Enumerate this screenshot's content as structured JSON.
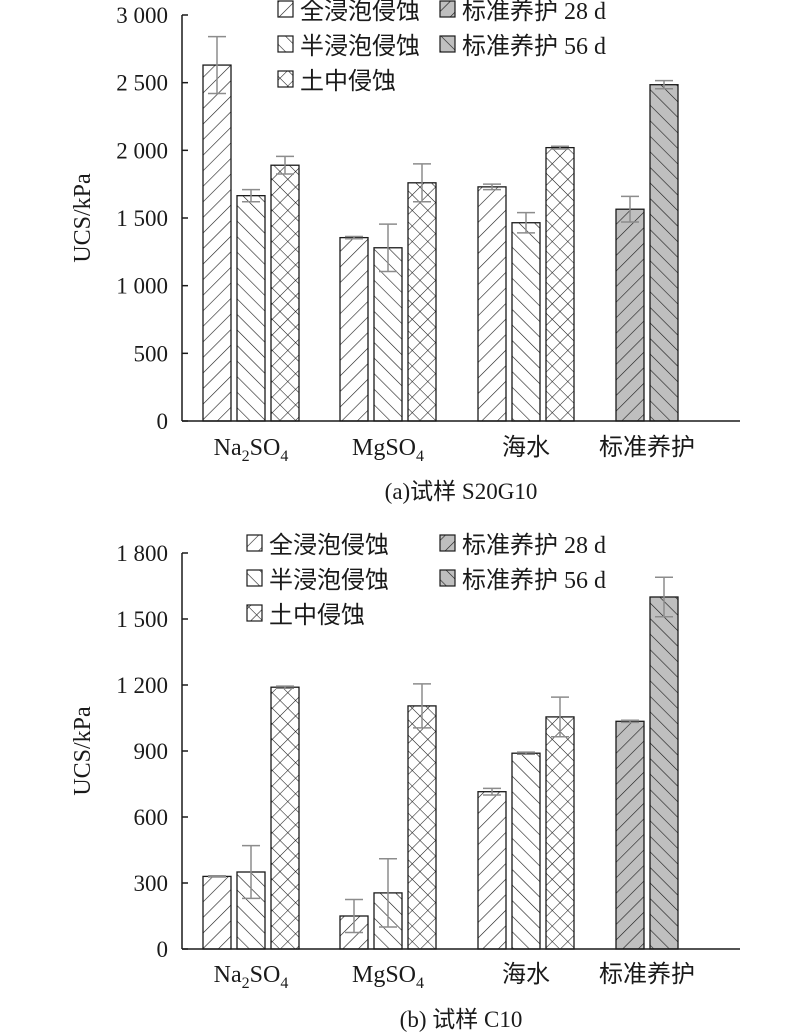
{
  "chart_data": [
    {
      "type": "bar",
      "caption": "(a)试样 S20G10",
      "ylabel": "UCS/kPa",
      "ylim": [
        0,
        3000
      ],
      "yticks": [
        0,
        500,
        1000,
        1500,
        2000,
        2500,
        3000
      ],
      "ytick_labels": [
        "0",
        "500",
        "1 000",
        "1 500",
        "2 000",
        "2 500",
        "3 000"
      ],
      "categories": [
        {
          "main": "Na",
          "sub1": "2",
          "mid": "SO",
          "sub2": "4"
        },
        {
          "main": "MgSO",
          "sub1": "4",
          "mid": "",
          "sub2": ""
        },
        {
          "main": "海水",
          "sub1": "",
          "mid": "",
          "sub2": ""
        },
        {
          "main": "标准养护",
          "sub1": "",
          "mid": "",
          "sub2": ""
        }
      ],
      "bars": [
        {
          "category": 0,
          "series": "全浸泡侵蚀",
          "value": 2630,
          "error": 210
        },
        {
          "category": 0,
          "series": "半浸泡侵蚀",
          "value": 1665,
          "error": 45
        },
        {
          "category": 0,
          "series": "土中侵蚀",
          "value": 1890,
          "error": 65
        },
        {
          "category": 1,
          "series": "全浸泡侵蚀",
          "value": 1355,
          "error": 8
        },
        {
          "category": 1,
          "series": "半浸泡侵蚀",
          "value": 1280,
          "error": 175
        },
        {
          "category": 1,
          "series": "土中侵蚀",
          "value": 1760,
          "error": 140
        },
        {
          "category": 2,
          "series": "全浸泡侵蚀",
          "value": 1730,
          "error": 20
        },
        {
          "category": 2,
          "series": "半浸泡侵蚀",
          "value": 1465,
          "error": 75
        },
        {
          "category": 2,
          "series": "土中侵蚀",
          "value": 2020,
          "error": 10
        },
        {
          "category": 3,
          "series": "标准养护 28 d",
          "value": 1565,
          "error": 95
        },
        {
          "category": 3,
          "series": "标准养护 56 d",
          "value": 2485,
          "error": 30
        }
      ]
    },
    {
      "type": "bar",
      "caption": "(b) 试样 C10",
      "ylabel": "UCS/kPa",
      "ylim": [
        0,
        1800
      ],
      "yticks": [
        0,
        300,
        600,
        900,
        1200,
        1500,
        1800
      ],
      "ytick_labels": [
        "0",
        "300",
        "600",
        "900",
        "1 200",
        "1 500",
        "1 800"
      ],
      "categories": [
        {
          "main": "Na",
          "sub1": "2",
          "mid": "SO",
          "sub2": "4"
        },
        {
          "main": "MgSO",
          "sub1": "4",
          "mid": "",
          "sub2": ""
        },
        {
          "main": "海水",
          "sub1": "",
          "mid": "",
          "sub2": ""
        },
        {
          "main": "标准养护",
          "sub1": "",
          "mid": "",
          "sub2": ""
        }
      ],
      "bars": [
        {
          "category": 0,
          "series": "全浸泡侵蚀",
          "value": 330,
          "error": 3
        },
        {
          "category": 0,
          "series": "半浸泡侵蚀",
          "value": 350,
          "error": 120
        },
        {
          "category": 0,
          "series": "土中侵蚀",
          "value": 1190,
          "error": 5
        },
        {
          "category": 1,
          "series": "全浸泡侵蚀",
          "value": 150,
          "error": 75
        },
        {
          "category": 1,
          "series": "半浸泡侵蚀",
          "value": 255,
          "error": 155
        },
        {
          "category": 1,
          "series": "土中侵蚀",
          "value": 1105,
          "error": 100
        },
        {
          "category": 2,
          "series": "全浸泡侵蚀",
          "value": 715,
          "error": 15
        },
        {
          "category": 2,
          "series": "半浸泡侵蚀",
          "value": 890,
          "error": 5
        },
        {
          "category": 2,
          "series": "土中侵蚀",
          "value": 1055,
          "error": 90
        },
        {
          "category": 3,
          "series": "标准养护 28 d",
          "value": 1035,
          "error": 5
        },
        {
          "category": 3,
          "series": "标准养护 56 d",
          "value": 1600,
          "error": 90
        }
      ]
    }
  ],
  "legend": [
    {
      "label": "全浸泡侵蚀",
      "pattern": "back-diagonal",
      "fill": "#ffffff"
    },
    {
      "label": "标准养护 28 d",
      "pattern": "back-diagonal",
      "fill": "#bfbfbf"
    },
    {
      "label": "半浸泡侵蚀",
      "pattern": "forward-diagonal",
      "fill": "#ffffff"
    },
    {
      "label": "标准养护 56 d",
      "pattern": "forward-diagonal",
      "fill": "#bfbfbf"
    },
    {
      "label": "土中侵蚀",
      "pattern": "crosshatch",
      "fill": "#ffffff"
    }
  ],
  "colors": {
    "axis": "#1a1a1a",
    "gray_fill": "#bfbfbf",
    "error_bar": "#8c8c8c"
  }
}
